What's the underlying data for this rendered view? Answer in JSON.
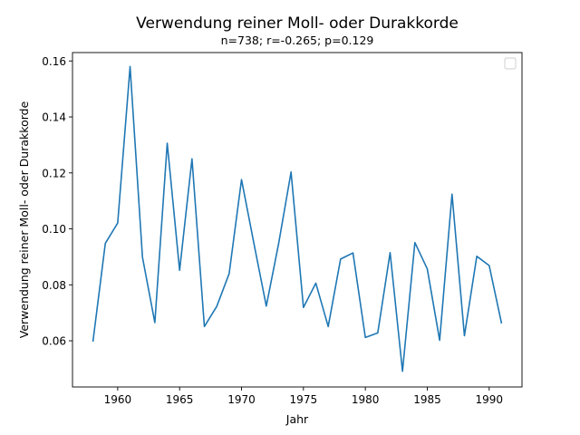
{
  "chart_data": {
    "type": "line",
    "title": "Verwendung reiner Moll- oder Durakkorde",
    "subtitle": "n=738; r=-0.265; p=0.129",
    "xlabel": "Jahr",
    "ylabel": "Verwendung reiner Moll- oder Durakkorde",
    "xlim": [
      1956.35,
      1992.65
    ],
    "ylim": [
      0.0435,
      0.163
    ],
    "x_ticks": [
      1960,
      1965,
      1970,
      1975,
      1980,
      1985,
      1990
    ],
    "y_ticks": [
      0.06,
      0.08,
      0.1,
      0.12,
      0.14,
      0.16
    ],
    "y_tick_labels": [
      "0.06",
      "0.08",
      "0.10",
      "0.12",
      "0.14",
      "0.16"
    ],
    "grid": false,
    "legend": "top-right, empty",
    "series": [
      {
        "color": "#1f77b4",
        "x": [
          1958,
          1959,
          1960,
          1961,
          1962,
          1963,
          1964,
          1965,
          1966,
          1967,
          1968,
          1969,
          1970,
          1971,
          1972,
          1973,
          1974,
          1975,
          1976,
          1977,
          1978,
          1979,
          1980,
          1981,
          1982,
          1983,
          1984,
          1985,
          1986,
          1987,
          1988,
          1989,
          1990,
          1991
        ],
        "values": [
          0.0597,
          0.0948,
          0.1021,
          0.158,
          0.0899,
          0.0665,
          0.1306,
          0.0852,
          0.125,
          0.0651,
          0.0723,
          0.084,
          0.1176,
          0.0948,
          0.0724,
          0.0948,
          0.1203,
          0.0719,
          0.0806,
          0.0651,
          0.0892,
          0.0914,
          0.0612,
          0.0628,
          0.0915,
          0.0491,
          0.0951,
          0.0857,
          0.0602,
          0.1124,
          0.0618,
          0.0902,
          0.0869,
          0.0662
        ]
      }
    ]
  }
}
